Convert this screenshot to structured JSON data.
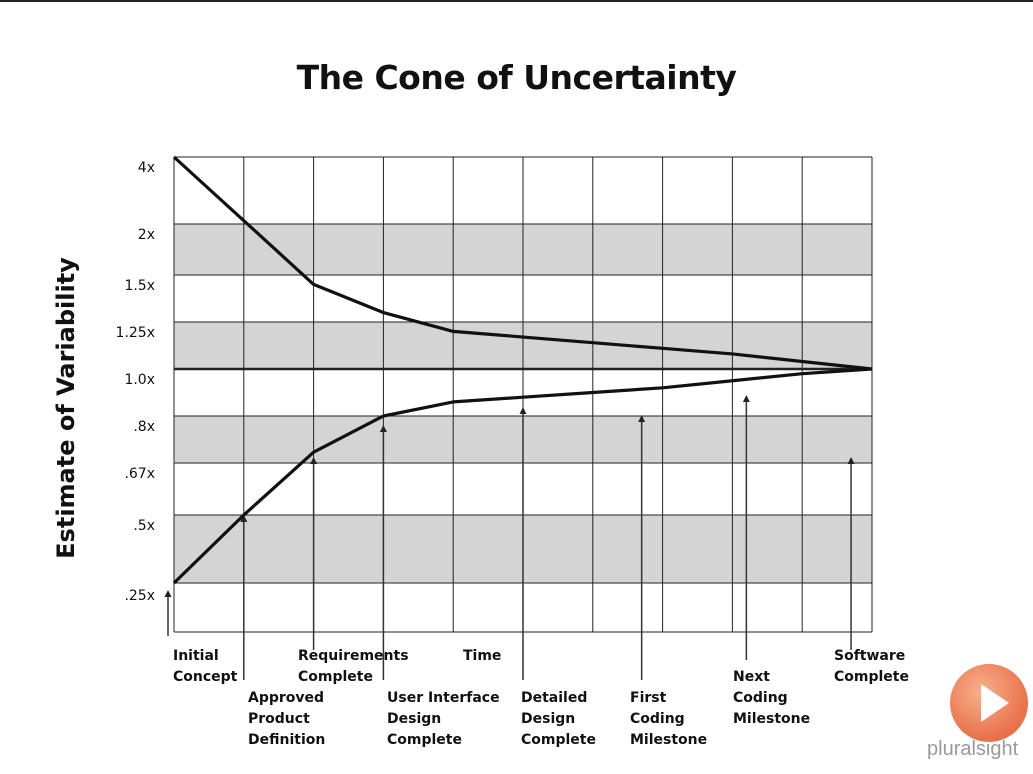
{
  "chart_data": {
    "type": "line",
    "title": "The Cone of Uncertainty",
    "ylabel": "Estimate of Variability",
    "xlabel": "Time",
    "y_ticks": [
      "4x",
      "2x",
      "1.5x",
      "1.25x",
      "1.0x",
      ".8x",
      ".67x",
      ".5x",
      ".25x"
    ],
    "x_stages": [
      {
        "label": "Initial Concept",
        "index": 0
      },
      {
        "label": "Approved Product Definition",
        "index": 1
      },
      {
        "label": "Requirements Complete",
        "index": 2
      },
      {
        "label": "User Interface Design Complete",
        "index": 3
      },
      {
        "label": "Detailed Design Complete",
        "index": 5
      },
      {
        "label": "First Coding Milestone",
        "index": 6.7
      },
      {
        "label": "Next Coding Milestone",
        "index": 8.2
      },
      {
        "label": "Software Complete",
        "index": 9.7
      }
    ],
    "series": [
      {
        "name": "",
        "x": [
          0,
          1,
          2,
          3,
          4,
          5,
          6,
          7,
          8,
          9,
          10
        ],
        "y": [
          4,
          2.1,
          1.45,
          1.3,
          1.2,
          1.17,
          1.14,
          1.11,
          1.08,
          1.04,
          1.0
        ]
      },
      {
        "name": "",
        "x": [
          0,
          1,
          2,
          3,
          4,
          5,
          6,
          7,
          8,
          9,
          10
        ],
        "y": [
          0.25,
          0.5,
          0.7,
          0.8,
          0.86,
          0.88,
          0.9,
          0.92,
          0.95,
          0.98,
          1.0
        ]
      }
    ],
    "grid": true,
    "shaded_bands": [
      "2x-1.5x",
      "1.25x-1.0x",
      ".8x-.67x",
      ".5x-.25x"
    ]
  },
  "logo": {
    "text": "pluralsight"
  }
}
